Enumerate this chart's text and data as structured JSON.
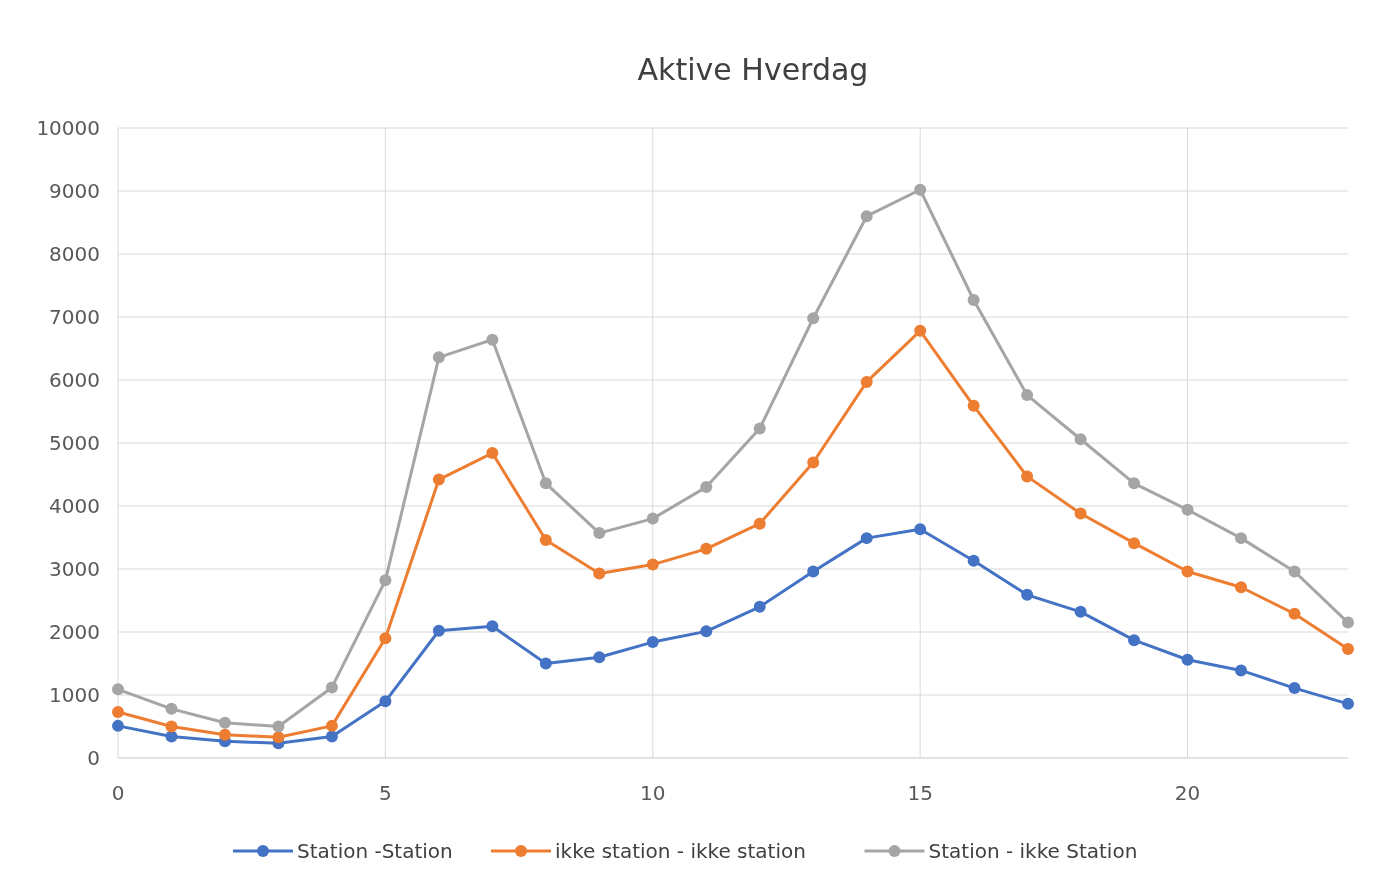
{
  "chart_data": {
    "type": "line",
    "title": "Aktive Hverdag",
    "x": [
      0,
      1,
      2,
      3,
      4,
      5,
      6,
      7,
      8,
      9,
      10,
      11,
      12,
      13,
      14,
      15,
      16,
      17,
      18,
      19,
      20,
      21,
      22,
      23
    ],
    "xlim": [
      0,
      23
    ],
    "xticks": [
      0,
      5,
      10,
      15,
      20
    ],
    "ylim": [
      0,
      10000
    ],
    "yticks": [
      0,
      1000,
      2000,
      3000,
      4000,
      5000,
      6000,
      7000,
      8000,
      9000,
      10000
    ],
    "grid": true,
    "legend": "bottom",
    "marker": "circle",
    "line_style": "solid",
    "series": [
      {
        "name": "Station -Station",
        "color": "#4472c4",
        "values": [
          510,
          340,
          265,
          235,
          340,
          900,
          2020,
          2090,
          1500,
          1600,
          1840,
          2010,
          2400,
          2960,
          3490,
          3630,
          3130,
          2590,
          2320,
          1870,
          1560,
          1390,
          1110,
          860
        ]
      },
      {
        "name": "ikke station - ikke station",
        "color": "#ed7d31",
        "values": [
          730,
          500,
          370,
          330,
          510,
          1900,
          4420,
          4840,
          3460,
          2930,
          3070,
          3320,
          3720,
          4690,
          5970,
          6780,
          5590,
          4470,
          3880,
          3410,
          2960,
          2710,
          2290,
          1730
        ]
      },
      {
        "name": "Station - ikke Station",
        "color": "#a5a5a5",
        "values": [
          1090,
          780,
          560,
          500,
          1120,
          2820,
          6360,
          6640,
          4360,
          3570,
          3800,
          4300,
          5230,
          6980,
          8600,
          9020,
          7270,
          5760,
          5060,
          4360,
          3940,
          3490,
          2960,
          2150
        ]
      }
    ]
  }
}
